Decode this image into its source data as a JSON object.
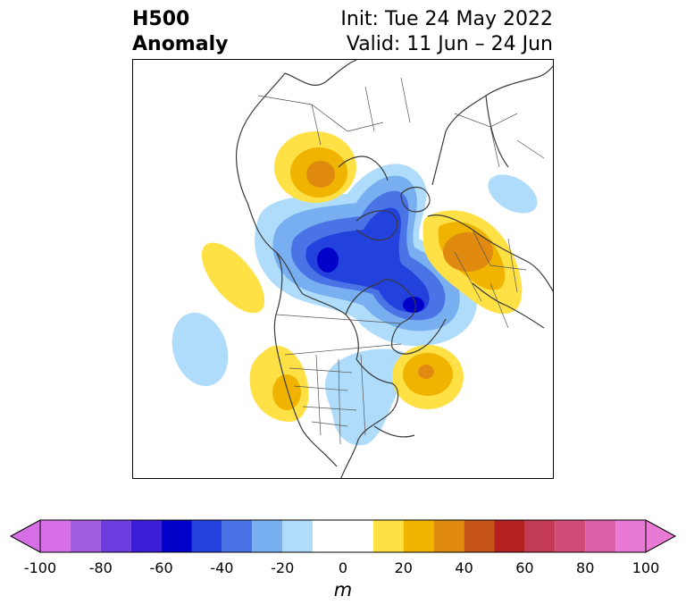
{
  "title": {
    "left_line1": "H500",
    "left_line2": "Anomaly",
    "right_line1": "Init: Tue 24 May 2022",
    "right_line2": "Valid: 11 Jun – 24 Jun"
  },
  "colorbar": {
    "unit": "m",
    "ticks": [
      "-100",
      "-80",
      "-60",
      "-40",
      "-20",
      "0",
      "20",
      "40",
      "60",
      "80",
      "100"
    ],
    "levels": [
      -100,
      -90,
      -80,
      -70,
      -60,
      -50,
      -40,
      -30,
      -20,
      -10,
      10,
      20,
      30,
      40,
      50,
      60,
      70,
      80,
      90,
      100
    ],
    "colors": [
      "#d66ee6",
      "#a05ce0",
      "#6e3de0",
      "#3c1ed8",
      "#0000c8",
      "#2341dc",
      "#4a73e6",
      "#78aff0",
      "#aedcfa",
      "#ffffff",
      "#ffe045",
      "#f0b400",
      "#e08a10",
      "#c85518",
      "#b42020",
      "#c23a55",
      "#d04a78",
      "#da5fa8",
      "#e87ad6"
    ],
    "extend_low_color": "#d66ee6",
    "extend_high_color": "#e87ad6"
  },
  "map": {
    "projection": "polar stereographic (north)",
    "region": "Northern Hemisphere / North America",
    "anomaly_features": [
      {
        "name": "Siberia/Europe high",
        "sign": "positive",
        "peak": 40
      },
      {
        "name": "Arctic low",
        "sign": "negative",
        "peak": -60
      },
      {
        "name": "Alaska high",
        "sign": "positive",
        "peak": 30
      },
      {
        "name": "Hudson Bay low",
        "sign": "negative",
        "peak": -60
      },
      {
        "name": "NE Pacific high",
        "sign": "positive",
        "peak": 10
      },
      {
        "name": "Pacific low",
        "sign": "negative",
        "peak": -20
      },
      {
        "name": "Western US high",
        "sign": "positive",
        "peak": 20
      },
      {
        "name": "Atlantic high",
        "sign": "positive",
        "peak": 40
      },
      {
        "name": "Eastern US low",
        "sign": "negative",
        "peak": -20
      }
    ]
  }
}
